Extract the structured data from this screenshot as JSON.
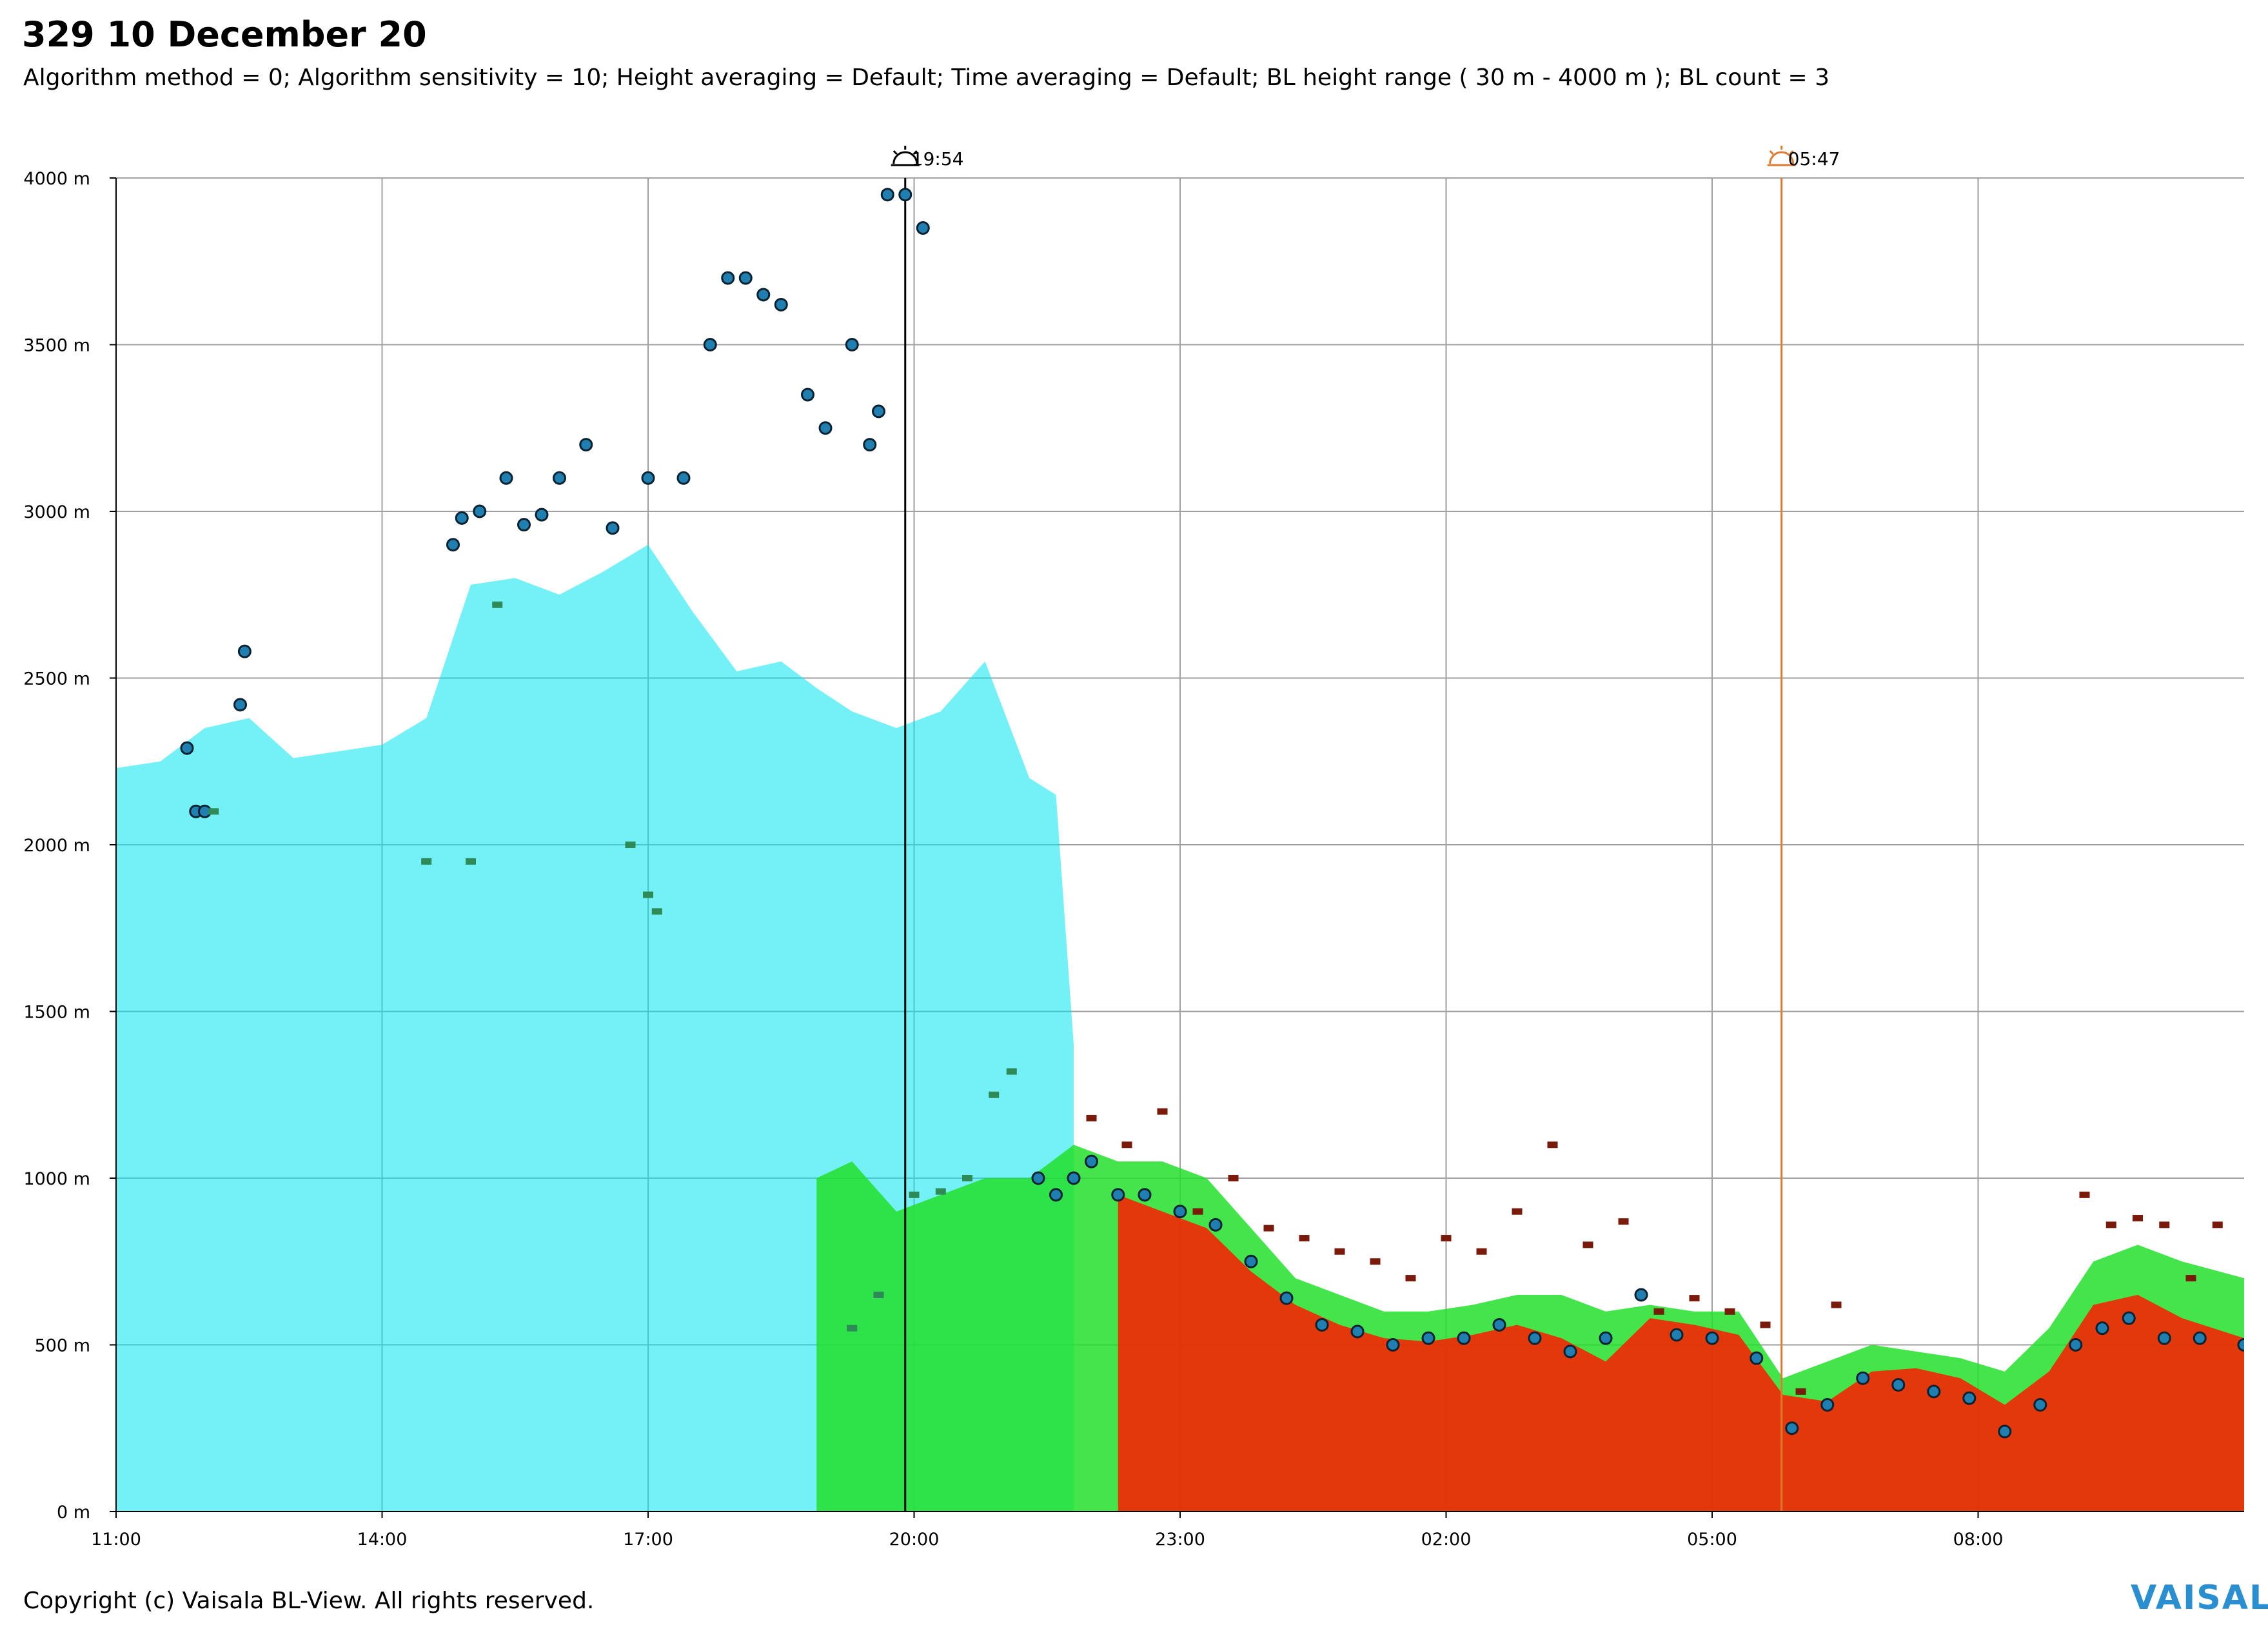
{
  "header": {
    "title": "329 10 December 20",
    "subtitle": "Algorithm method = 0; Algorithm sensitivity = 10; Height averaging = Default; Time averaging = Default; BL height range ( 30 m - 4000 m ); BL count = 3"
  },
  "footer": {
    "copyright": "Copyright (c) Vaisala BL-View. All rights reserved.",
    "logo": "VAISALA"
  },
  "colors": {
    "grid": "#a0a0a0",
    "backscatter_low": "#00e5ee",
    "backscatter_mid": "#22e02a",
    "backscatter_high": "#ff1a00",
    "bl_marker_fill": "#1f7fb0",
    "sunset_line": "#000000",
    "sunrise_line": "#e07a2e",
    "dark_marker": "#7a1a0a"
  },
  "icons": {
    "sunset": "sunset-icon",
    "sunrise": "sunrise-icon"
  },
  "chart_data": {
    "type": "time-height backscatter profile",
    "ylim": [
      0,
      4000
    ],
    "y_ticks": [
      {
        "value": 0,
        "label": "0 m"
      },
      {
        "value": 500,
        "label": "500 m"
      },
      {
        "value": 1000,
        "label": "1000 m"
      },
      {
        "value": 1500,
        "label": "1500 m"
      },
      {
        "value": 2000,
        "label": "2000 m"
      },
      {
        "value": 2500,
        "label": "2500 m"
      },
      {
        "value": 3000,
        "label": "3000 m"
      },
      {
        "value": 3500,
        "label": "3500 m"
      },
      {
        "value": 4000,
        "label": "4000 m"
      }
    ],
    "xlim_hours": [
      11,
      35
    ],
    "x_ticks": [
      {
        "value": 11,
        "label": "11:00"
      },
      {
        "value": 14,
        "label": "14:00"
      },
      {
        "value": 17,
        "label": "17:00"
      },
      {
        "value": 20,
        "label": "20:00"
      },
      {
        "value": 23,
        "label": "23:00"
      },
      {
        "value": 26,
        "label": "02:00"
      },
      {
        "value": 29,
        "label": "05:00"
      },
      {
        "value": 32,
        "label": "08:00"
      }
    ],
    "grid": true,
    "markers": [
      {
        "name": "sunset",
        "time": 19.9,
        "label": "19:54"
      },
      {
        "name": "sunrise",
        "time": 29.783,
        "label": "05:47"
      }
    ],
    "backscatter_layers": [
      {
        "name": "cyan",
        "x": [
          11.0,
          11.5,
          12.0,
          12.5,
          13.0,
          13.5,
          14.0,
          14.5,
          15.0,
          15.5,
          16.0,
          16.5,
          17.0,
          17.5,
          18.0,
          18.5,
          18.9,
          19.3,
          19.8,
          20.3,
          20.8,
          21.3,
          21.6,
          21.8
        ],
        "y": [
          2230,
          2250,
          2350,
          2380,
          2260,
          2280,
          2300,
          2380,
          2780,
          2800,
          2750,
          2820,
          2900,
          2700,
          2520,
          2550,
          2470,
          2400,
          2350,
          2400,
          2550,
          2200,
          2150,
          1400
        ]
      },
      {
        "name": "green",
        "x": [
          18.9,
          19.3,
          19.8,
          20.3,
          20.8,
          21.3,
          21.8,
          22.3,
          22.8,
          23.3,
          23.8,
          24.3,
          24.8,
          25.3,
          25.8,
          26.3,
          26.8,
          27.3,
          27.8,
          28.3,
          28.8,
          29.3,
          29.8,
          30.3,
          30.8,
          31.3,
          31.8,
          32.3,
          32.8,
          33.3,
          33.8,
          34.3,
          35.0
        ],
        "y": [
          1000,
          1050,
          900,
          950,
          1000,
          1000,
          1100,
          1050,
          1050,
          1000,
          850,
          700,
          650,
          600,
          600,
          620,
          650,
          650,
          600,
          620,
          600,
          600,
          400,
          450,
          500,
          480,
          460,
          420,
          550,
          750,
          800,
          750,
          700
        ]
      },
      {
        "name": "red",
        "x": [
          22.3,
          22.8,
          23.3,
          23.8,
          24.3,
          24.8,
          25.3,
          25.8,
          26.3,
          26.8,
          27.3,
          27.8,
          28.3,
          28.8,
          29.3,
          29.8,
          30.3,
          30.8,
          31.3,
          31.8,
          32.3,
          32.8,
          33.3,
          33.8,
          34.3,
          35.0
        ],
        "y": [
          950,
          900,
          850,
          720,
          620,
          560,
          520,
          510,
          530,
          560,
          520,
          450,
          580,
          560,
          530,
          350,
          330,
          420,
          430,
          400,
          320,
          420,
          620,
          650,
          580,
          520
        ]
      }
    ],
    "bl_series": [
      {
        "name": "BL1",
        "x": [
          11.8,
          11.9,
          12.0,
          12.4,
          12.45,
          14.8,
          14.9,
          15.1,
          15.4,
          15.6,
          15.8,
          16.0,
          16.3,
          16.6,
          17.0,
          17.4,
          17.7,
          17.9,
          18.1,
          18.3,
          18.5,
          18.8,
          19.0,
          19.3,
          19.5,
          19.6,
          19.7,
          19.9,
          20.1,
          21.4,
          21.6,
          21.8,
          22.0,
          22.3,
          22.6,
          23.0,
          23.4,
          23.8,
          24.2,
          24.6,
          25.0,
          25.4,
          25.8,
          26.2,
          26.6,
          27.0,
          27.4,
          27.8,
          28.2,
          28.6,
          29.0,
          29.5,
          29.9,
          30.3,
          30.7,
          31.1,
          31.5,
          31.9,
          32.3,
          32.7,
          33.1,
          33.4,
          33.7,
          34.1,
          34.5,
          35.0
        ],
        "y": [
          2290,
          2100,
          2100,
          2420,
          2580,
          2900,
          2980,
          3000,
          3100,
          2960,
          2990,
          3100,
          3200,
          2950,
          3100,
          3100,
          3500,
          3700,
          3700,
          3650,
          3620,
          3350,
          3250,
          3500,
          3200,
          3300,
          3950,
          3950,
          3850,
          1000,
          950,
          1000,
          1050,
          950,
          950,
          900,
          860,
          750,
          640,
          560,
          540,
          500,
          520,
          520,
          560,
          520,
          480,
          520,
          650,
          530,
          520,
          460,
          250,
          320,
          400,
          380,
          360,
          340,
          240,
          320,
          500,
          550,
          580,
          520,
          520,
          500
        ]
      },
      {
        "name": "BL2",
        "x": [
          22.0,
          22.4,
          22.8,
          23.2,
          23.6,
          24.0,
          24.4,
          24.8,
          25.2,
          25.6,
          26.0,
          26.4,
          26.8,
          27.2,
          27.6,
          28.0,
          28.4,
          28.8,
          29.2,
          29.6,
          30.0,
          30.4,
          33.2,
          33.5,
          33.8,
          34.1,
          34.4,
          34.7
        ],
        "y": [
          1180,
          1100,
          1200,
          900,
          1000,
          850,
          820,
          780,
          750,
          700,
          820,
          780,
          900,
          1100,
          800,
          870,
          600,
          640,
          600,
          560,
          360,
          620,
          950,
          860,
          880,
          860,
          700,
          860
        ]
      },
      {
        "name": "BL3",
        "x": [
          12.1,
          14.5,
          15.0,
          15.3,
          16.8,
          17.0,
          17.1,
          19.3,
          19.6,
          20.0,
          20.3,
          20.6,
          20.9,
          21.1
        ],
        "y": [
          2100,
          1950,
          1950,
          2720,
          2000,
          1850,
          1800,
          550,
          650,
          950,
          960,
          1000,
          1250,
          1320
        ]
      }
    ]
  }
}
